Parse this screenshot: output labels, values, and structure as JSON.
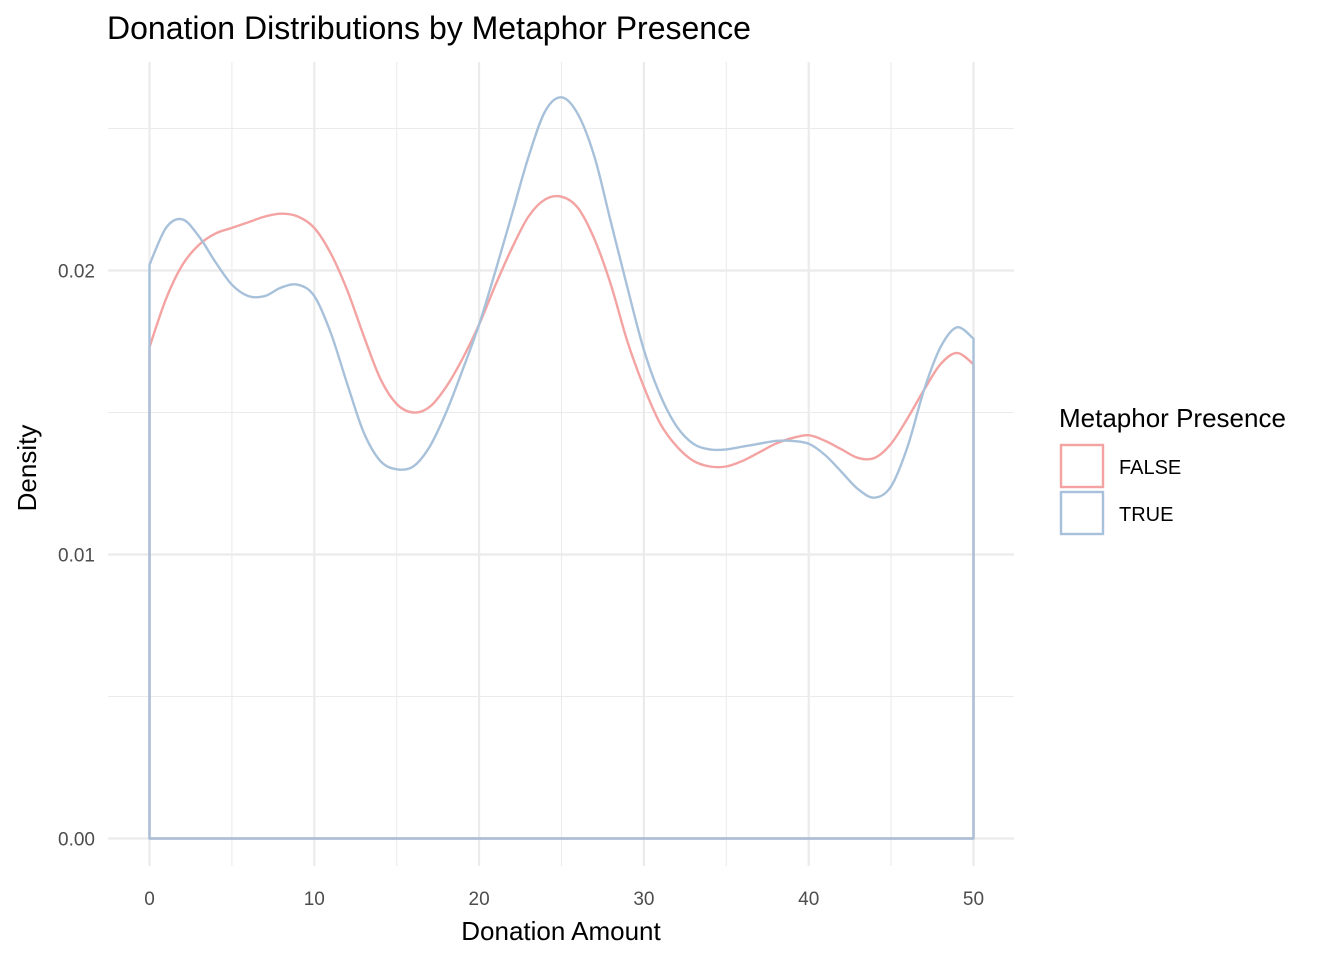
{
  "chart_data": {
    "type": "area",
    "title": "Donation Distributions by Metaphor Presence",
    "xlabel": "Donation Amount",
    "ylabel": "Density",
    "xlim": [
      0,
      50
    ],
    "ylim": [
      0,
      0.026
    ],
    "x_ticks": [
      0,
      10,
      20,
      30,
      40,
      50
    ],
    "x_tick_labels": [
      "0",
      "10",
      "20",
      "30",
      "40",
      "50"
    ],
    "y_ticks": [
      0.0,
      0.01,
      0.02
    ],
    "y_tick_labels": [
      "0.00",
      "0.01",
      "0.02"
    ],
    "grid": true,
    "legend": {
      "title": "Metaphor Presence",
      "position": "right"
    },
    "series": [
      {
        "name": "FALSE",
        "color": "#f4a3a3",
        "x": [
          0,
          1,
          2,
          3,
          4,
          5,
          6,
          7,
          8,
          9,
          10,
          11,
          12,
          13,
          14,
          15,
          16,
          17,
          18,
          19,
          20,
          21,
          22,
          23,
          24,
          25,
          26,
          27,
          28,
          29,
          30,
          31,
          32,
          33,
          34,
          35,
          36,
          37,
          38,
          39,
          40,
          41,
          42,
          43,
          44,
          45,
          46,
          47,
          48,
          49,
          50
        ],
        "y": [
          0.0173,
          0.019,
          0.0202,
          0.0209,
          0.0213,
          0.0215,
          0.0217,
          0.0219,
          0.022,
          0.0219,
          0.0215,
          0.0206,
          0.0193,
          0.0177,
          0.0162,
          0.0153,
          0.015,
          0.0152,
          0.0159,
          0.0169,
          0.0181,
          0.0195,
          0.0208,
          0.0219,
          0.0225,
          0.0226,
          0.0222,
          0.0211,
          0.0195,
          0.0175,
          0.0159,
          0.0146,
          0.0138,
          0.0133,
          0.0131,
          0.0131,
          0.0133,
          0.0136,
          0.0139,
          0.0141,
          0.0142,
          0.014,
          0.0137,
          0.0134,
          0.0134,
          0.0139,
          0.0148,
          0.0158,
          0.0167,
          0.0171,
          0.0167
        ]
      },
      {
        "name": "TRUE",
        "color": "#a8c1da",
        "x": [
          0,
          1,
          2,
          3,
          4,
          5,
          6,
          7,
          8,
          9,
          10,
          11,
          12,
          13,
          14,
          15,
          16,
          17,
          18,
          19,
          20,
          21,
          22,
          23,
          24,
          25,
          26,
          27,
          28,
          29,
          30,
          31,
          32,
          33,
          34,
          35,
          36,
          37,
          38,
          39,
          40,
          41,
          42,
          43,
          44,
          45,
          46,
          47,
          48,
          49,
          50
        ],
        "y": [
          0.0202,
          0.0215,
          0.0218,
          0.0212,
          0.0203,
          0.0195,
          0.0191,
          0.0191,
          0.0194,
          0.0195,
          0.0191,
          0.0178,
          0.016,
          0.0143,
          0.0133,
          0.013,
          0.0131,
          0.0138,
          0.015,
          0.0165,
          0.0181,
          0.02,
          0.022,
          0.024,
          0.0256,
          0.0261,
          0.0255,
          0.024,
          0.0217,
          0.0194,
          0.0172,
          0.0156,
          0.0145,
          0.0139,
          0.0137,
          0.0137,
          0.0138,
          0.0139,
          0.014,
          0.014,
          0.0139,
          0.0135,
          0.0129,
          0.0123,
          0.012,
          0.0124,
          0.0138,
          0.0158,
          0.0173,
          0.018,
          0.0176
        ]
      }
    ]
  }
}
